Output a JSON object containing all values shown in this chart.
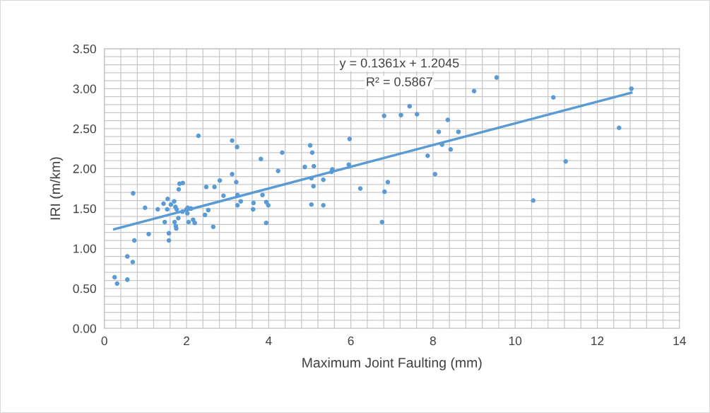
{
  "chart_data": {
    "type": "scatter",
    "xlabel": "Maximum Joint Faulting (mm)",
    "ylabel": "IRI (m/km)",
    "xlim": [
      0,
      14
    ],
    "xticks": [
      0,
      2,
      4,
      6,
      8,
      10,
      12,
      14
    ],
    "ylim": [
      0,
      3.5
    ],
    "yticks": [
      {
        "value": 0,
        "label": "0.00"
      },
      {
        "value": 0.5,
        "label": "0.50"
      },
      {
        "value": 1,
        "label": "1.00"
      },
      {
        "value": 1.5,
        "label": "1.50"
      },
      {
        "value": 2,
        "label": "2.00"
      },
      {
        "value": 2.5,
        "label": "2.50"
      },
      {
        "value": 3,
        "label": "3.00"
      },
      {
        "value": 3.5,
        "label": "3.50"
      }
    ],
    "grid": true,
    "legend": false,
    "annotations": [
      "y = 0.1361x + 1.2045",
      "R² = 0.5867"
    ],
    "series": [
      {
        "marker": "circle",
        "color": "#5b9bd5",
        "x": [
          0.25,
          0.31,
          0.56,
          0.56,
          0.69,
          0.73,
          0.7,
          0.99,
          1.08,
          1.3,
          1.44,
          1.54,
          1.53,
          1.47,
          1.57,
          1.57,
          1.62,
          1.7,
          1.73,
          1.76,
          1.8,
          1.71,
          1.74,
          1.75,
          1.81,
          1.83,
          1.91,
          1.9,
          2.0,
          2.03,
          2.11,
          2.02,
          2.05,
          2.16,
          2.2,
          2.29,
          2.45,
          2.53,
          2.65,
          2.48,
          2.68,
          2.81,
          2.9,
          3.11,
          3.23,
          3.11,
          3.21,
          3.24,
          3.24,
          3.32,
          3.63,
          3.62,
          3.81,
          3.85,
          3.94,
          3.99,
          3.94,
          4.23,
          4.33,
          5.01,
          5.06,
          4.88,
          5.1,
          5.04,
          5.09,
          5.33,
          5.04,
          5.33,
          5.55,
          5.53,
          5.97,
          5.95,
          6.23,
          6.81,
          6.76,
          6.82,
          6.9,
          7.22,
          7.43,
          7.61,
          7.87,
          8.05,
          8.14,
          8.22,
          8.36,
          8.43,
          8.62,
          9.0,
          9.55,
          10.93,
          10.44,
          11.23,
          12.53,
          12.83
        ],
        "values": [
          0.64,
          0.56,
          0.61,
          0.9,
          0.83,
          1.1,
          1.69,
          1.51,
          1.18,
          1.49,
          1.56,
          1.62,
          1.49,
          1.33,
          1.19,
          1.1,
          1.55,
          1.59,
          1.52,
          1.49,
          1.38,
          1.33,
          1.28,
          1.25,
          1.74,
          1.81,
          1.82,
          1.46,
          1.49,
          1.51,
          1.5,
          1.44,
          1.33,
          1.36,
          1.32,
          2.41,
          1.42,
          1.48,
          1.27,
          1.77,
          1.77,
          1.85,
          1.66,
          2.35,
          2.27,
          1.93,
          1.83,
          1.67,
          1.54,
          1.59,
          1.57,
          1.49,
          2.12,
          1.67,
          1.58,
          1.54,
          1.32,
          1.97,
          2.2,
          2.29,
          2.2,
          2.02,
          2.03,
          1.88,
          1.78,
          1.86,
          1.55,
          1.54,
          1.99,
          1.96,
          2.37,
          2.05,
          1.75,
          2.66,
          1.33,
          1.71,
          1.83,
          2.67,
          2.78,
          2.68,
          2.16,
          1.93,
          2.46,
          2.3,
          2.61,
          2.24,
          2.46,
          2.97,
          3.14,
          2.89,
          1.6,
          2.09,
          2.51,
          3.0
        ]
      },
      {
        "type": "line",
        "color": "#5b9bd5",
        "x": [
          0.24,
          12.83
        ],
        "values": [
          1.24,
          2.95
        ]
      }
    ]
  }
}
